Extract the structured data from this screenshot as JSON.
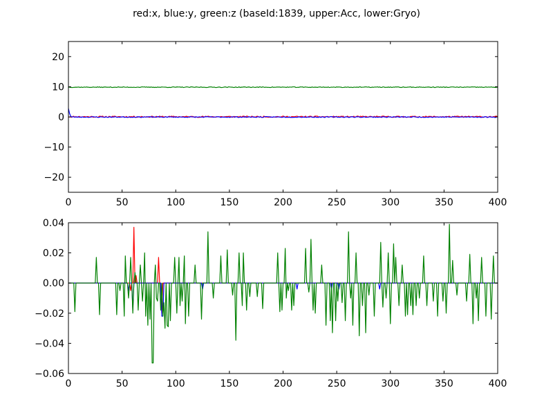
{
  "figure": {
    "suptitle": "red:x, blue:y, green:z (baseId:1839, upper:Acc, lower:Gryo)"
  },
  "chart_data": [
    {
      "type": "line",
      "name": "upper",
      "xlim": [
        0,
        400
      ],
      "ylim": [
        -25,
        25
      ],
      "x_ticks": [
        0,
        50,
        100,
        150,
        200,
        250,
        300,
        350,
        400
      ],
      "y_ticks": [
        -20,
        -10,
        0,
        10,
        20
      ],
      "x_tick_labels": [
        "0",
        "50",
        "100",
        "150",
        "200",
        "250",
        "300",
        "350",
        "400"
      ],
      "y_tick_labels": [
        "−20",
        "−10",
        "0",
        "10",
        "20"
      ],
      "grid": false,
      "series": [
        {
          "color": "#ff0000",
          "mode": "noise",
          "base": 0.05,
          "amp": 0.22,
          "seed": 11
        },
        {
          "color": "#0000ff",
          "mode": "noise",
          "base": -0.05,
          "amp": 0.15,
          "seed": 23,
          "start": [
            2.8,
            1.2,
            0.3
          ]
        },
        {
          "color": "#008000",
          "mode": "noise",
          "base": 9.85,
          "amp": 0.12,
          "seed": 37
        }
      ]
    },
    {
      "type": "line",
      "name": "lower",
      "xlim": [
        0,
        400
      ],
      "ylim": [
        -0.06,
        0.04
      ],
      "x_ticks": [
        0,
        50,
        100,
        150,
        200,
        250,
        300,
        350,
        400
      ],
      "y_ticks": [
        -0.06,
        -0.04,
        -0.02,
        0.0,
        0.02,
        0.04
      ],
      "x_tick_labels": [
        "0",
        "50",
        "100",
        "150",
        "200",
        "250",
        "300",
        "350",
        "400"
      ],
      "y_tick_labels": [
        "−0.06",
        "−0.04",
        "−0.02",
        "0.00",
        "0.02",
        "0.04"
      ],
      "grid": false,
      "series": [
        {
          "color": "#ff0000",
          "mode": "spikes",
          "spikes": [
            [
              58,
              -0.005
            ],
            [
              61,
              0.037
            ],
            [
              63,
              0.005
            ],
            [
              84,
              0.017
            ],
            [
              87,
              -0.02
            ]
          ]
        },
        {
          "color": "#0000ff",
          "mode": "spikes",
          "spikes": [
            [
              56,
              -0.005
            ],
            [
              60,
              -0.018
            ],
            [
              87,
              -0.022
            ],
            [
              88,
              -0.022
            ],
            [
              125,
              -0.004
            ],
            [
              213,
              -0.004
            ],
            [
              245,
              -0.004
            ],
            [
              252,
              -0.004
            ],
            [
              290,
              -0.004
            ]
          ]
        },
        {
          "color": "#008000",
          "mode": "spikes",
          "spikes": [
            [
              6,
              -0.019
            ],
            [
              26,
              0.017
            ],
            [
              29,
              -0.021
            ],
            [
              45,
              -0.021
            ],
            [
              48,
              -0.005
            ],
            [
              52,
              -0.022
            ],
            [
              53,
              0.018
            ],
            [
              56,
              -0.01
            ],
            [
              58,
              0.017
            ],
            [
              60,
              -0.02
            ],
            [
              62,
              0.007
            ],
            [
              65,
              -0.018
            ],
            [
              67,
              0.012
            ],
            [
              69,
              -0.012
            ],
            [
              71,
              0.02
            ],
            [
              72,
              -0.022
            ],
            [
              74,
              -0.028
            ],
            [
              76,
              -0.024
            ],
            [
              78,
              -0.053
            ],
            [
              79,
              -0.053
            ],
            [
              81,
              0.012
            ],
            [
              82,
              -0.01
            ],
            [
              83,
              -0.012
            ],
            [
              86,
              -0.018
            ],
            [
              88,
              -0.022
            ],
            [
              89,
              -0.013
            ],
            [
              90,
              -0.03
            ],
            [
              92,
              -0.028
            ],
            [
              93,
              -0.029
            ],
            [
              95,
              -0.025
            ],
            [
              99,
              0.017
            ],
            [
              101,
              -0.02
            ],
            [
              103,
              0.017
            ],
            [
              104,
              -0.015
            ],
            [
              106,
              -0.012
            ],
            [
              108,
              0.018
            ],
            [
              109,
              -0.027
            ],
            [
              112,
              -0.022
            ],
            [
              118,
              0.012
            ],
            [
              124,
              -0.024
            ],
            [
              130,
              0.034
            ],
            [
              135,
              -0.01
            ],
            [
              142,
              0.018
            ],
            [
              148,
              0.022
            ],
            [
              153,
              -0.008
            ],
            [
              156,
              -0.038
            ],
            [
              159,
              0.02
            ],
            [
              162,
              -0.015
            ],
            [
              163,
              0.02
            ],
            [
              166,
              -0.018
            ],
            [
              169,
              -0.009
            ],
            [
              176,
              -0.009
            ],
            [
              181,
              -0.017
            ],
            [
              195,
              0.02
            ],
            [
              197,
              -0.019
            ],
            [
              199,
              -0.018
            ],
            [
              202,
              0.023
            ],
            [
              203,
              -0.01
            ],
            [
              205,
              -0.005
            ],
            [
              208,
              -0.018
            ],
            [
              210,
              -0.015
            ],
            [
              221,
              0.023
            ],
            [
              224,
              -0.006
            ],
            [
              226,
              0.029
            ],
            [
              228,
              -0.018
            ],
            [
              230,
              -0.02
            ],
            [
              236,
              0.012
            ],
            [
              240,
              -0.028
            ],
            [
              244,
              -0.025
            ],
            [
              246,
              -0.033
            ],
            [
              249,
              -0.025
            ],
            [
              251,
              -0.012
            ],
            [
              255,
              -0.013
            ],
            [
              258,
              -0.025
            ],
            [
              261,
              0.034
            ],
            [
              263,
              -0.01
            ],
            [
              265,
              -0.028
            ],
            [
              268,
              0.02
            ],
            [
              271,
              -0.035
            ],
            [
              274,
              -0.015
            ],
            [
              277,
              -0.033
            ],
            [
              280,
              -0.008
            ],
            [
              285,
              -0.022
            ],
            [
              291,
              0.027
            ],
            [
              293,
              -0.016
            ],
            [
              296,
              -0.01
            ],
            [
              298,
              0.02
            ],
            [
              300,
              -0.027
            ],
            [
              303,
              0.026
            ],
            [
              305,
              0.017
            ],
            [
              308,
              -0.015
            ],
            [
              311,
              0.012
            ],
            [
              314,
              -0.022
            ],
            [
              316,
              -0.021
            ],
            [
              319,
              -0.015
            ],
            [
              321,
              -0.021
            ],
            [
              324,
              -0.015
            ],
            [
              327,
              -0.01
            ],
            [
              331,
              0.018
            ],
            [
              334,
              -0.015
            ],
            [
              340,
              -0.012
            ],
            [
              344,
              -0.022
            ],
            [
              349,
              -0.012
            ],
            [
              352,
              -0.02
            ],
            [
              355,
              0.039
            ],
            [
              358,
              0.015
            ],
            [
              362,
              -0.008
            ],
            [
              371,
              -0.012
            ],
            [
              374,
              0.019
            ],
            [
              377,
              -0.027
            ],
            [
              380,
              -0.01
            ],
            [
              382,
              -0.025
            ],
            [
              385,
              0.017
            ],
            [
              389,
              -0.022
            ],
            [
              394,
              -0.024
            ],
            [
              396,
              0.018
            ]
          ]
        }
      ]
    }
  ]
}
